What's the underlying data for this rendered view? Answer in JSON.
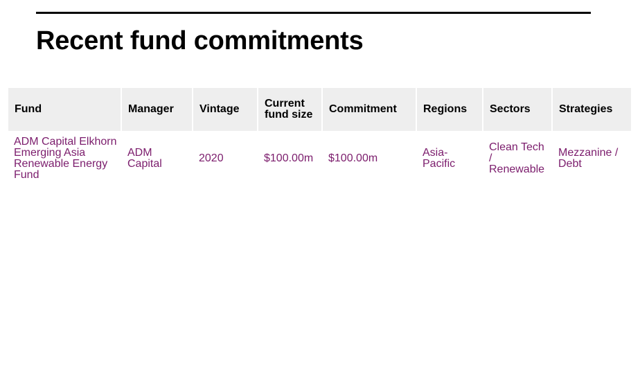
{
  "section": {
    "title": "Recent fund commitments"
  },
  "table": {
    "columns": [
      "Fund",
      "Manager",
      "Vintage",
      "Current fund size",
      "Commitment",
      "Regions",
      "Sectors",
      "Strategies"
    ],
    "rows": [
      {
        "fund": "ADM Capital Elkhorn Emerging Asia Renewable Energy Fund",
        "manager": "ADM Capital",
        "vintage": "2020",
        "current_fund_size": "$100.00m",
        "commitment": "$100.00m",
        "regions": "Asia-Pacific",
        "sectors": "Clean Tech / Renewable",
        "strategies": "Mezzanine / Debt"
      }
    ]
  },
  "colors": {
    "header_background": "#eeeeee",
    "link_text": "#7b1c6c",
    "rule": "#000000"
  }
}
